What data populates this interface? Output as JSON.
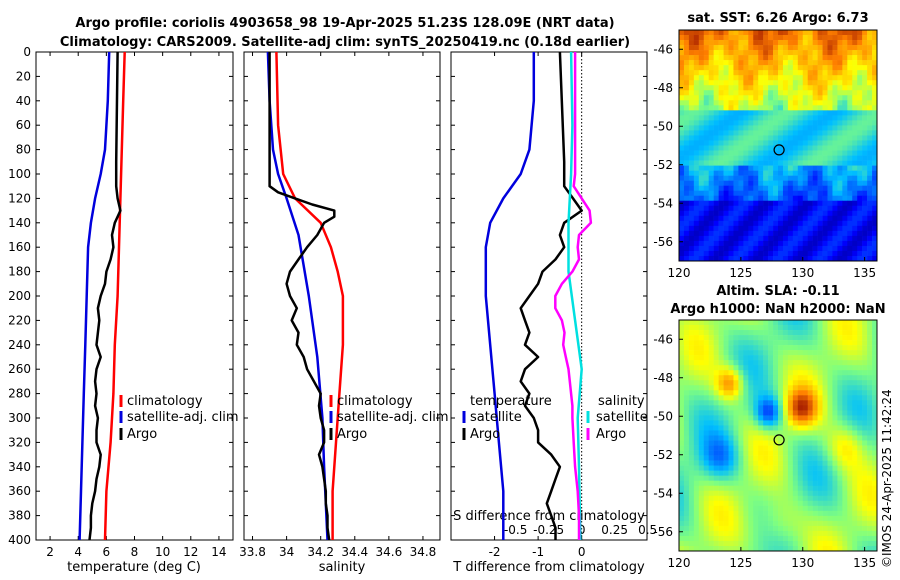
{
  "title": {
    "line1": "Argo profile: coriolis 4903658_98 19-Apr-2025 51.23S 128.09E (NRT data)",
    "line2": "Climatology: CARS2009. Satellite-adj clim: synTS_20250419.nc (0.18d earlier)"
  },
  "colors": {
    "climatology": "#ff0000",
    "satellite": "#0000dd",
    "argo": "#000000",
    "sal_sat": "#00e0e0",
    "sal_argo": "#ff00ff"
  },
  "chart_data": [
    {
      "type": "line",
      "id": "temperature",
      "xlabel": "temperature (deg C)",
      "xlim": [
        1,
        15
      ],
      "ylim": [
        0,
        400
      ],
      "xticks": [
        "2",
        "4",
        "6",
        "8",
        "10",
        "12",
        "14"
      ],
      "yticks": [
        "0",
        "20",
        "40",
        "60",
        "80",
        "100",
        "120",
        "140",
        "160",
        "180",
        "200",
        "220",
        "240",
        "260",
        "280",
        "300",
        "320",
        "340",
        "360",
        "380",
        "400"
      ],
      "legend": [
        "climatology",
        "satellite-adj. clim",
        "Argo"
      ],
      "series": [
        {
          "name": "climatology",
          "depth": [
            0,
            40,
            80,
            120,
            160,
            200,
            240,
            280,
            320,
            360,
            400
          ],
          "values": [
            7.3,
            7.2,
            7.1,
            7.0,
            6.9,
            6.8,
            6.6,
            6.5,
            6.3,
            6.0,
            5.9
          ]
        },
        {
          "name": "satellite-adj. clim",
          "depth": [
            0,
            40,
            80,
            100,
            120,
            140,
            160,
            200,
            240,
            280,
            320,
            360,
            400
          ],
          "values": [
            6.2,
            6.1,
            5.9,
            5.6,
            5.2,
            4.9,
            4.7,
            4.6,
            4.5,
            4.4,
            4.3,
            4.2,
            4.1
          ]
        },
        {
          "name": "Argo",
          "depth": [
            0,
            90,
            110,
            120,
            130,
            140,
            150,
            160,
            170,
            180,
            190,
            200,
            210,
            220,
            230,
            240,
            250,
            260,
            270,
            280,
            290,
            300,
            310,
            320,
            330,
            340,
            350,
            360,
            370,
            380,
            390,
            400
          ],
          "values": [
            6.8,
            6.7,
            6.7,
            6.8,
            7.0,
            6.6,
            6.4,
            6.5,
            6.3,
            6.0,
            5.9,
            5.6,
            5.4,
            5.5,
            5.4,
            5.3,
            5.6,
            5.3,
            5.2,
            5.3,
            5.2,
            5.4,
            5.3,
            5.3,
            5.6,
            5.5,
            5.3,
            5.2,
            5.0,
            4.9,
            4.9,
            4.8
          ]
        }
      ]
    },
    {
      "type": "line",
      "id": "salinity",
      "xlabel": "salinity",
      "xlim": [
        33.75,
        34.9
      ],
      "ylim": [
        0,
        400
      ],
      "xticks": [
        "33.8",
        "34",
        "34.2",
        "34.4",
        "34.6",
        "34.8"
      ],
      "legend": [
        "climatology",
        "satellite-adj. clim",
        "Argo"
      ],
      "series": [
        {
          "name": "climatology",
          "depth": [
            0,
            60,
            100,
            120,
            140,
            160,
            180,
            200,
            240,
            280,
            320,
            360,
            400
          ],
          "values": [
            33.94,
            33.95,
            33.98,
            34.05,
            34.2,
            34.26,
            34.3,
            34.33,
            34.33,
            34.31,
            34.29,
            34.27,
            34.27
          ]
        },
        {
          "name": "satellite-adj. clim",
          "depth": [
            0,
            40,
            80,
            100,
            120,
            150,
            200,
            250,
            300,
            340,
            400
          ],
          "values": [
            33.89,
            33.9,
            33.92,
            33.95,
            34.0,
            34.07,
            34.13,
            34.18,
            34.21,
            34.22,
            34.24
          ]
        },
        {
          "name": "Argo",
          "depth": [
            0,
            110,
            115,
            120,
            125,
            130,
            135,
            140,
            150,
            160,
            170,
            180,
            190,
            200,
            210,
            220,
            230,
            240,
            250,
            260,
            270,
            280,
            290,
            300,
            310,
            320,
            330,
            340,
            350,
            360,
            370,
            380,
            390,
            400
          ],
          "values": [
            33.9,
            33.9,
            33.95,
            34.05,
            34.15,
            34.28,
            34.28,
            34.22,
            34.18,
            34.12,
            34.07,
            34.02,
            34.0,
            34.02,
            34.06,
            34.03,
            34.07,
            34.06,
            34.1,
            34.12,
            34.16,
            34.2,
            34.19,
            34.2,
            34.22,
            34.22,
            34.19,
            34.21,
            34.22,
            34.23,
            34.23,
            34.24,
            34.24,
            34.25
          ]
        }
      ]
    },
    {
      "type": "line",
      "id": "difference",
      "xlabel": "T difference from climatology",
      "xlabel_top": "S difference from climatology",
      "xlim": [
        -3,
        1.5
      ],
      "ylim": [
        0,
        400
      ],
      "xticks": [
        "-2",
        "-1",
        "0"
      ],
      "xticks_top": [
        "-0.5",
        "-0.25",
        "0",
        "0.25",
        "0.5"
      ],
      "legend_title_t": "temperature",
      "legend_title_s": "salinity",
      "legend": [
        "satellite",
        "Argo",
        "satellite",
        "Argo"
      ],
      "series": [
        {
          "name": "temperature satellite",
          "depth": [
            0,
            40,
            80,
            100,
            120,
            140,
            160,
            200,
            240,
            280,
            320,
            360,
            400
          ],
          "values": [
            -1.1,
            -1.1,
            -1.2,
            -1.4,
            -1.8,
            -2.1,
            -2.2,
            -2.2,
            -2.1,
            -2.0,
            -1.9,
            -1.8,
            -1.8
          ]
        },
        {
          "name": "temperature Argo",
          "depth": [
            0,
            90,
            110,
            120,
            130,
            140,
            150,
            160,
            170,
            180,
            190,
            200,
            210,
            220,
            230,
            240,
            250,
            260,
            270,
            280,
            290,
            300,
            310,
            320,
            330,
            340,
            350,
            360,
            370,
            380,
            390,
            400
          ],
          "values": [
            -0.5,
            -0.4,
            -0.4,
            -0.2,
            0.0,
            -0.4,
            -0.5,
            -0.4,
            -0.6,
            -0.9,
            -1.0,
            -1.2,
            -1.4,
            -1.3,
            -1.2,
            -1.3,
            -1.0,
            -1.3,
            -1.4,
            -1.2,
            -1.3,
            -1.1,
            -1.0,
            -1.0,
            -0.7,
            -0.5,
            -0.6,
            -0.7,
            -0.8,
            -0.7,
            -0.6,
            -0.6
          ]
        },
        {
          "name": "salinity satellite",
          "depth": [
            0,
            60,
            100,
            140,
            180,
            220,
            260,
            300,
            340,
            400
          ],
          "values": [
            -0.08,
            -0.07,
            -0.08,
            -0.1,
            -0.1,
            -0.05,
            0.0,
            -0.03,
            -0.02,
            -0.01
          ]
        },
        {
          "name": "salinity Argo",
          "depth": [
            0,
            60,
            100,
            110,
            120,
            130,
            140,
            150,
            160,
            170,
            180,
            190,
            200,
            210,
            220,
            230,
            240,
            250,
            260,
            270,
            280,
            290,
            300,
            320,
            340,
            360,
            380,
            400
          ],
          "values": [
            -0.05,
            -0.05,
            -0.05,
            -0.06,
            0.0,
            0.06,
            0.07,
            -0.02,
            -0.03,
            -0.02,
            -0.07,
            -0.15,
            -0.2,
            -0.2,
            -0.15,
            -0.13,
            -0.14,
            -0.12,
            -0.1,
            -0.09,
            -0.08,
            -0.07,
            -0.07,
            -0.06,
            -0.05,
            -0.03,
            -0.02,
            -0.02
          ]
        }
      ]
    },
    {
      "type": "heatmap",
      "id": "sst_map",
      "title": "sat. SST: 6.26 Argo: 6.73",
      "xlim": [
        120,
        136
      ],
      "ylim": [
        -57,
        -45
      ],
      "xticks": [
        "120",
        "125",
        "130",
        "135"
      ],
      "yticks": [
        "-46",
        "-48",
        "-50",
        "-52",
        "-54",
        "-56"
      ],
      "marker": {
        "lon": 128.09,
        "lat": -51.23
      }
    },
    {
      "type": "heatmap",
      "id": "sla_map",
      "title1": "Altim. SLA: -0.11",
      "title2": "Argo h1000: NaN h2000: NaN",
      "xlim": [
        120,
        136
      ],
      "ylim": [
        -57,
        -45
      ],
      "xticks": [
        "120",
        "125",
        "130",
        "135"
      ],
      "yticks": [
        "-46",
        "-48",
        "-50",
        "-52",
        "-54",
        "-56"
      ],
      "marker": {
        "lon": 128.09,
        "lat": -51.23
      }
    }
  ],
  "watermark": "©IMOS 24-Apr-2025 11:42:24"
}
